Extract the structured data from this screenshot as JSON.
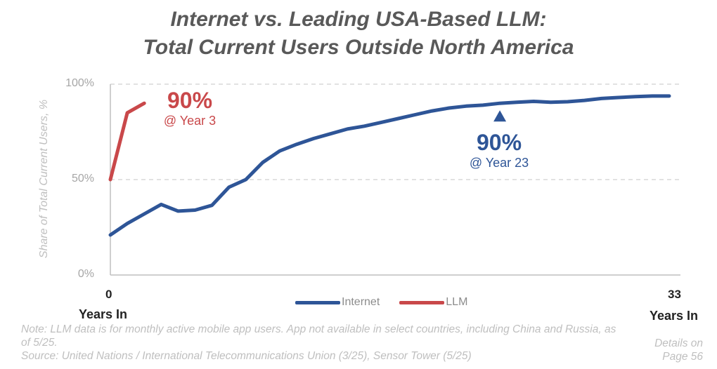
{
  "chart_data": {
    "type": "line",
    "title": "Internet vs. Leading USA-Based LLM:",
    "subtitle": "Total Current Users Outside North America",
    "ylabel": "Share of Total Current Users, %",
    "xlabel_left": "Years In",
    "xlabel_right": "Years In",
    "ylim": [
      0,
      100
    ],
    "xlim": [
      0,
      33
    ],
    "yticks": [
      "0%",
      "50%",
      "100%"
    ],
    "xticks": [
      "0",
      "33"
    ],
    "grid": true,
    "series": [
      {
        "name": "Internet",
        "color": "#2e5597",
        "x": [
          0,
          1,
          2,
          3,
          4,
          5,
          6,
          7,
          8,
          9,
          10,
          11,
          12,
          13,
          14,
          15,
          16,
          17,
          18,
          19,
          20,
          21,
          22,
          23,
          24,
          25,
          26,
          27,
          28,
          29,
          30,
          31,
          32,
          33
        ],
        "values": [
          21,
          27,
          32,
          37,
          33.5,
          34,
          36.5,
          46,
          50,
          59,
          65,
          68.5,
          71.5,
          74,
          76.5,
          78,
          80,
          82,
          84,
          86,
          87.5,
          88.5,
          89,
          90,
          90.5,
          91,
          90.5,
          90.8,
          91.5,
          92.5,
          93,
          93.5,
          93.8,
          93.8
        ]
      },
      {
        "name": "LLM",
        "color": "#c9484a",
        "x": [
          0,
          1,
          2
        ],
        "values": [
          50,
          85,
          90
        ]
      }
    ],
    "annotations": {
      "llm": {
        "value": "90%",
        "label": "@ Year 3"
      },
      "internet": {
        "value": "90%",
        "label": "@ Year 23"
      }
    }
  },
  "legend": {
    "internet": "Internet",
    "llm": "LLM"
  },
  "note": "Note: LLM data is for monthly active mobile app users. App not available in select countries, including China and Russia, as of 5/25.",
  "source": "Source: United Nations / International Telecommunications Union (3/25), Sensor Tower (5/25)",
  "details": "Details on Page 56"
}
